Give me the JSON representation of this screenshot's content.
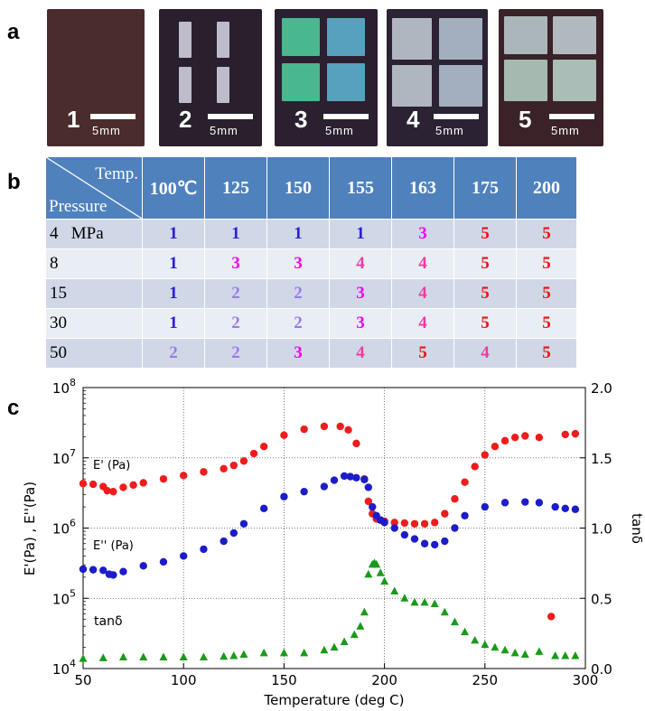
{
  "panels": {
    "a": "a",
    "b": "b",
    "c": "c"
  },
  "photos": [
    {
      "num": "1",
      "scale": "5mm",
      "bg": "#4a2c2c"
    },
    {
      "num": "2",
      "scale": "5mm",
      "bg": "#2a1f2c"
    },
    {
      "num": "3",
      "scale": "5mm",
      "bg": "#2b2030"
    },
    {
      "num": "4",
      "scale": "5mm",
      "bg": "#2b2234"
    },
    {
      "num": "5",
      "scale": "5mm",
      "bg": "#3a2228"
    }
  ],
  "table": {
    "corner_temp": "Temp.",
    "corner_pressure": "Pressure",
    "temps": [
      "100℃",
      "125",
      "150",
      "155",
      "163",
      "175",
      "200"
    ],
    "rows": [
      {
        "pressure": "4   MPa",
        "values": [
          "1",
          "1",
          "1",
          "1",
          "3",
          "5",
          "5"
        ]
      },
      {
        "pressure": "8",
        "values": [
          "1",
          "3",
          "3",
          "4",
          "4",
          "5",
          "5"
        ]
      },
      {
        "pressure": "15",
        "values": [
          "1",
          "2",
          "2",
          "3",
          "4",
          "5",
          "5"
        ]
      },
      {
        "pressure": "30",
        "values": [
          "1",
          "2",
          "2",
          "3",
          "4",
          "5",
          "5"
        ]
      },
      {
        "pressure": "50",
        "values": [
          "2",
          "2",
          "3",
          "4",
          "5",
          "4",
          "5"
        ]
      }
    ]
  },
  "chart_data": {
    "type": "scatter",
    "xlabel": "Temperature (deg C)",
    "ylabel_left": "E'(Pa) , E''(Pa)",
    "ylabel_right": "tanδ",
    "xlim": [
      50,
      300
    ],
    "ylim_left_log10": [
      4,
      8
    ],
    "ylim_right": [
      0.0,
      2.0
    ],
    "left_scale": "log",
    "grid": true,
    "x_ticks": [
      "50",
      "100",
      "150",
      "200",
      "250",
      "300"
    ],
    "y_left_ticks": [
      {
        "base": "10",
        "exp": "4"
      },
      {
        "base": "10",
        "exp": "5"
      },
      {
        "base": "10",
        "exp": "6"
      },
      {
        "base": "10",
        "exp": "7"
      },
      {
        "base": "10",
        "exp": "8"
      }
    ],
    "y_right_ticks": [
      "0.0",
      "0.5",
      "1.0",
      "1.5",
      "2.0"
    ],
    "annotations": [
      "E' (Pa)",
      "E'' (Pa)",
      "tanδ"
    ],
    "series": [
      {
        "label": "E' (Pa)",
        "color": "#ee1c1c",
        "marker": "circle",
        "axis": "left",
        "x": [
          50,
          55,
          60,
          62,
          65,
          70,
          75,
          80,
          90,
          100,
          110,
          120,
          125,
          130,
          135,
          140,
          150,
          160,
          170,
          178,
          182,
          186,
          190,
          192,
          194,
          196,
          198,
          200,
          205,
          210,
          215,
          220,
          225,
          230,
          235,
          240,
          245,
          250,
          255,
          260,
          265,
          270,
          277,
          283,
          290,
          295
        ],
        "y": [
          4300000.0,
          4200000.0,
          3900000.0,
          3400000.0,
          3300000.0,
          3800000.0,
          4100000.0,
          4400000.0,
          5000000.0,
          5600000.0,
          6300000.0,
          7000000.0,
          7800000.0,
          9000000.0,
          11500000.0,
          14500000.0,
          21000000.0,
          25500000.0,
          28000000.0,
          28000000.0,
          25000000.0,
          16000000.0,
          5000000.0,
          2400000.0,
          1600000.0,
          1350000.0,
          1300000.0,
          1250000.0,
          1200000.0,
          1180000.0,
          1150000.0,
          1150000.0,
          1200000.0,
          1600000.0,
          2600000.0,
          4500000.0,
          7500000.0,
          11000000.0,
          14500000.0,
          17500000.0,
          19500000.0,
          20500000.0,
          19500000.0,
          55000.0,
          21500000.0,
          22000000.0
        ]
      },
      {
        "label": "E'' (Pa)",
        "color": "#1c1cc8",
        "marker": "circle",
        "axis": "left",
        "x": [
          50,
          55,
          60,
          63,
          65,
          70,
          80,
          90,
          100,
          110,
          120,
          125,
          130,
          140,
          150,
          160,
          170,
          175,
          180,
          183,
          186,
          190,
          192,
          194,
          196,
          198,
          200,
          205,
          210,
          215,
          220,
          225,
          230,
          235,
          240,
          250,
          260,
          270,
          277,
          285,
          290,
          295
        ],
        "y": [
          260000.0,
          255000.0,
          250000.0,
          220000.0,
          215000.0,
          240000.0,
          290000.0,
          330000.0,
          400000.0,
          500000.0,
          650000.0,
          850000.0,
          1150000.0,
          1900000.0,
          2800000.0,
          3300000.0,
          3900000.0,
          4800000.0,
          5500000.0,
          5400000.0,
          5200000.0,
          4900000.0,
          3800000.0,
          2000000.0,
          1500000.0,
          1300000.0,
          1200000.0,
          1000000.0,
          800000.0,
          700000.0,
          600000.0,
          580000.0,
          650000.0,
          1000000.0,
          1500000.0,
          2000000.0,
          2300000.0,
          2350000.0,
          2300000.0,
          2000000.0,
          1900000.0,
          1850000.0
        ]
      },
      {
        "label": "tanδ",
        "color": "#1a9a1a",
        "marker": "triangle",
        "axis": "right",
        "x": [
          50,
          60,
          70,
          80,
          90,
          100,
          110,
          120,
          125,
          130,
          140,
          150,
          160,
          170,
          175,
          180,
          185,
          188,
          190,
          192,
          194,
          195,
          196,
          198,
          200,
          205,
          210,
          215,
          220,
          225,
          230,
          235,
          240,
          245,
          250,
          255,
          260,
          265,
          270,
          277,
          285,
          290,
          295
        ],
        "y": [
          0.07,
          0.075,
          0.08,
          0.08,
          0.08,
          0.08,
          0.08,
          0.085,
          0.09,
          0.1,
          0.11,
          0.11,
          0.11,
          0.13,
          0.15,
          0.19,
          0.24,
          0.3,
          0.4,
          0.67,
          0.74,
          0.75,
          0.74,
          0.68,
          0.62,
          0.55,
          0.5,
          0.47,
          0.47,
          0.46,
          0.4,
          0.33,
          0.26,
          0.2,
          0.17,
          0.15,
          0.13,
          0.11,
          0.1,
          0.12,
          0.09,
          0.09,
          0.09
        ]
      }
    ]
  }
}
